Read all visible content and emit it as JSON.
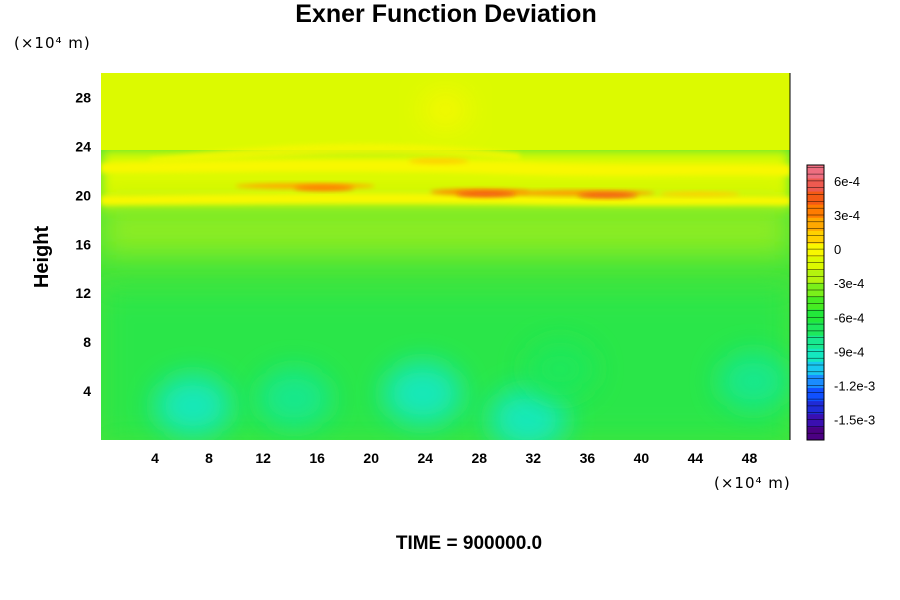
{
  "chart_data": {
    "type": "heatmap",
    "title": "Exner Function Deviation",
    "ylabel": "Height",
    "y_unit": "(×10⁴ m)",
    "x_unit": "(×10⁴ m)",
    "xlim": [
      0,
      51
    ],
    "ylim": [
      0,
      30
    ],
    "x_ticks": [
      4,
      8,
      12,
      16,
      20,
      24,
      28,
      32,
      36,
      40,
      44,
      48
    ],
    "y_ticks": [
      4,
      8,
      12,
      16,
      20,
      24,
      28
    ],
    "colorbar": {
      "ticks": [
        {
          "value": 0.0006,
          "label": "6e-4"
        },
        {
          "value": 0.0003,
          "label": "3e-4"
        },
        {
          "value": 0,
          "label": "0"
        },
        {
          "value": -0.0003,
          "label": "-3e-4"
        },
        {
          "value": -0.0006,
          "label": "-6e-4"
        },
        {
          "value": -0.0009,
          "label": "-9e-4"
        },
        {
          "value": -0.0012,
          "label": "-1.2e-3"
        },
        {
          "value": -0.0015,
          "label": "-1.5e-3"
        }
      ],
      "range": [
        -0.00168,
        0.00074
      ],
      "colors": [
        "#4b0082",
        "#3a0fb0",
        "#1f2bd6",
        "#1050ff",
        "#1a8cff",
        "#18c8f0",
        "#14e8c0",
        "#18e890",
        "#1ee85c",
        "#22e83a",
        "#46ec22",
        "#7af01a",
        "#b4f40e",
        "#dcfa00",
        "#f8f800",
        "#ffd000",
        "#ffa800",
        "#ff7c00",
        "#f45a14",
        "#ee5a50",
        "#ee6e80"
      ]
    },
    "field_features": [
      {
        "x": 6.8,
        "y": 2.8,
        "value": -0.00092
      },
      {
        "x": 14.3,
        "y": 3.4,
        "value": -0.00086
      },
      {
        "x": 23.8,
        "y": 3.8,
        "value": -0.00098
      },
      {
        "x": 31.6,
        "y": 1.7,
        "value": -0.00095
      },
      {
        "x": 34.0,
        "y": 5.8,
        "value": -0.00072
      },
      {
        "x": 48.3,
        "y": 4.8,
        "value": -0.00078
      },
      {
        "x": 16.5,
        "y": 20.6,
        "value": 0.00034
      },
      {
        "x": 28.5,
        "y": 20.1,
        "value": 0.00045
      },
      {
        "x": 37.5,
        "y": 20.0,
        "value": 0.0004
      },
      {
        "x": 25.0,
        "y": 22.8,
        "value": 0.0001
      },
      {
        "x": 25.5,
        "y": 27.0,
        "value": -6e-05
      }
    ]
  },
  "footer": {
    "time_label": "TIME = 900000.0"
  }
}
